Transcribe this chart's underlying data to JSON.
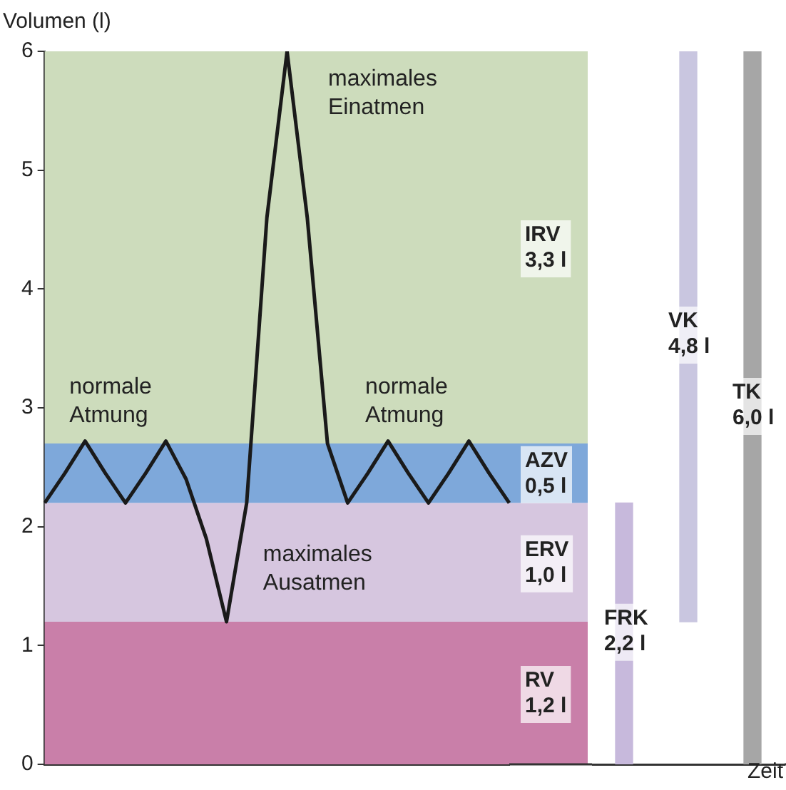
{
  "chart_data": [
    {
      "type": "line",
      "ylabel": "Volumen (l)",
      "categories": [
        null,
        null,
        null,
        null,
        null,
        null,
        null,
        null,
        null,
        null,
        null,
        null,
        null,
        null,
        null,
        null,
        null,
        null,
        null,
        null,
        null,
        null,
        null,
        null
      ],
      "ylim": [
        0,
        6
      ],
      "yticks": [
        0,
        1,
        2,
        3,
        4,
        5,
        6
      ],
      "tick_labels": "y",
      "series": [
        {
          "color": "#1a1a1a",
          "values": [
            2.2,
            2.45,
            2.72,
            2.45,
            2.2,
            2.45,
            2.72,
            2.4,
            1.9,
            1.2,
            2.2,
            4.6,
            6,
            4.6,
            2.7,
            2.2,
            2.45,
            2.72,
            2.45,
            2.2,
            2.45,
            2.72,
            2.45,
            2.2
          ]
        }
      ],
      "bands": [
        {
          "axis": "y",
          "from": 0,
          "to": 1.2,
          "label": "RV\n1,2 l",
          "color": "#c97fa9"
        },
        {
          "axis": "y",
          "from": 1.2,
          "to": 2.2,
          "label": "ERV\n1,0 l",
          "color": "#d6c6df"
        },
        {
          "axis": "y",
          "from": 2.2,
          "to": 2.7,
          "label": "AZV\n0,5 l",
          "color": "#7ea8da"
        },
        {
          "axis": "y",
          "from": 2.7,
          "to": 6,
          "label": "IRV\n3,3 l",
          "color": "#cddcbc"
        }
      ],
      "annotations": [
        "maximales\nEinatmen",
        "normale\nAtmung",
        "normale\nAtmung",
        "maximales\nAusatmen"
      ]
    },
    {
      "type": "bar",
      "xlabel": "Zeit",
      "categories": [
        null,
        null,
        null
      ],
      "ylim": [
        0,
        6
      ],
      "tick_labels": false,
      "series": [
        {
          "base": [
            0,
            1.2,
            0
          ],
          "values": [
            2.2,
            4.8,
            6
          ],
          "colors": [
            "#c7b9dc",
            "#c9c6e0",
            "#a6a6a6"
          ],
          "value_labels": [
            "FRK\n2,2 l",
            "VK\n4,8 l",
            "TK\n6,0 l"
          ]
        }
      ]
    }
  ]
}
